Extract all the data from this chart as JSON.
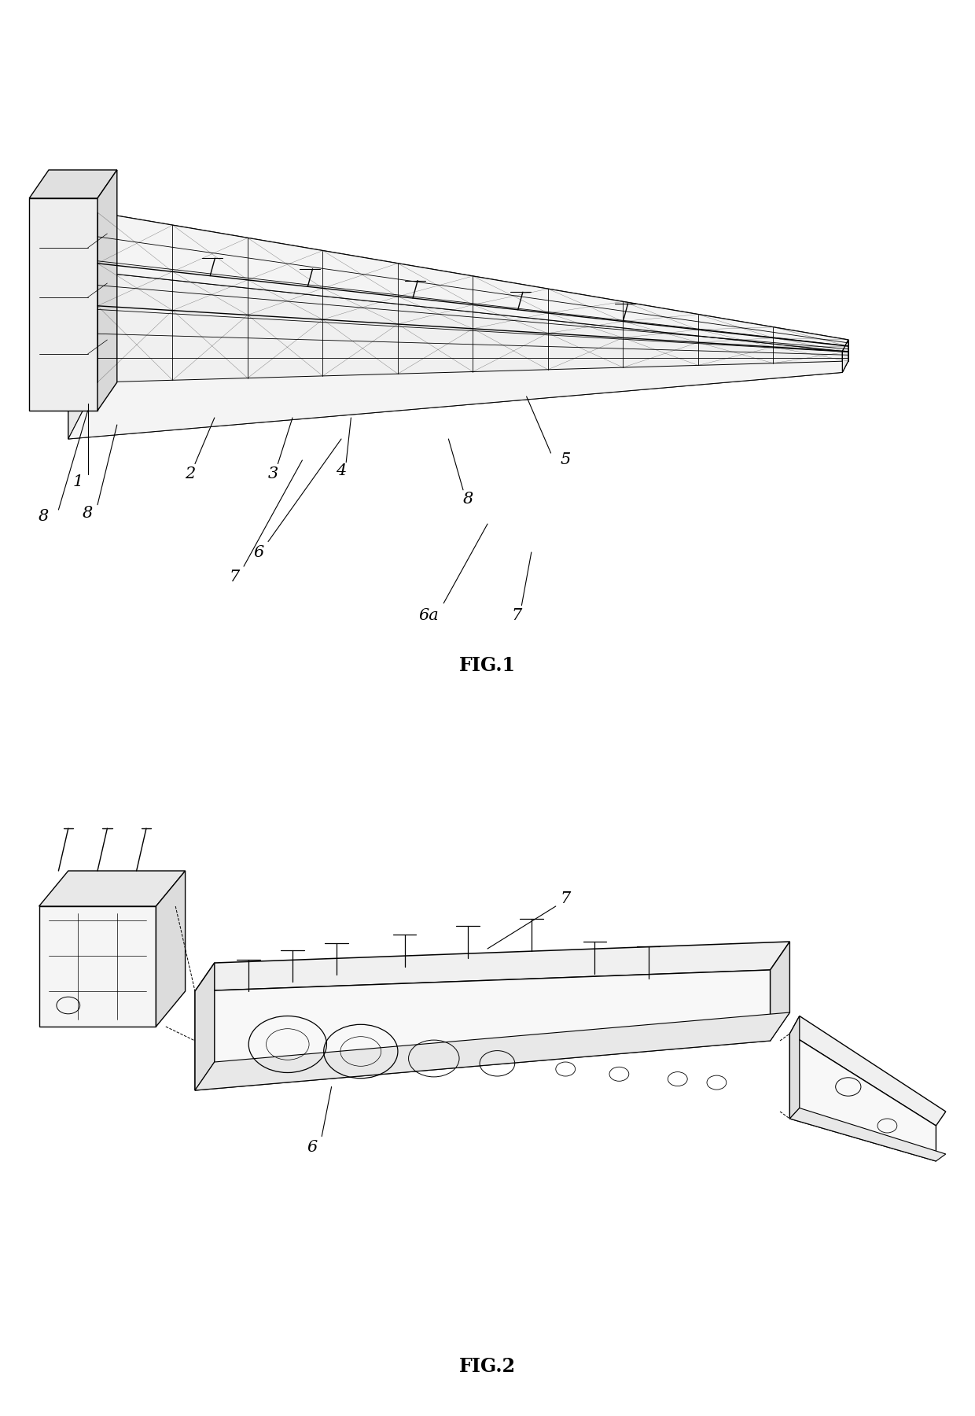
{
  "fig1_title": "FIG.1",
  "fig2_title": "FIG.2",
  "bg_color": "#ffffff",
  "line_color": "#000000",
  "font_size_labels": 15,
  "font_size_title": 17,
  "wing_lw": 1.0,
  "internal_lw": 0.6
}
